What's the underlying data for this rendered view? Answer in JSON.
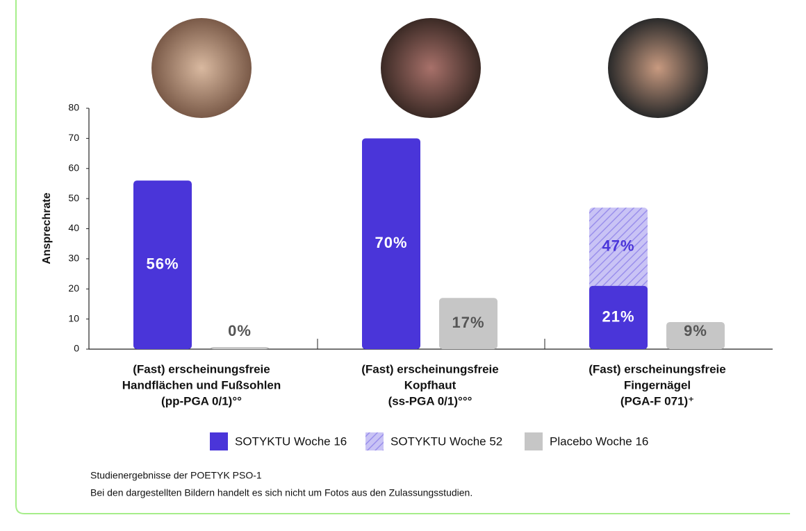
{
  "chart_data": {
    "type": "bar",
    "y_label": "Ansprechrate",
    "categories": [
      [
        "(Fast) erscheinungsfreie",
        "Handflächen und Fußsohlen",
        "(pp-PGA 0/1)°°"
      ],
      [
        "(Fast) erscheinungsfreie",
        "Kopfhaut",
        "(ss-PGA 0/1)°°°"
      ],
      [
        "(Fast) erscheinungsfreie",
        "Fingernägel",
        "(PGA-F 071)⁺"
      ]
    ],
    "series": [
      {
        "name": "SOTYKTU Woche 16",
        "color": "#4a35d9",
        "values": [
          56,
          70,
          21
        ],
        "value_labels": [
          "56%",
          "70%",
          "21%"
        ],
        "label_color": "#ffffff"
      },
      {
        "name": "SOTYKTU Woche 52",
        "color": "#b9b1f2",
        "hatched": true,
        "values": [
          null,
          null,
          47
        ],
        "value_labels": [
          null,
          null,
          "47%"
        ],
        "label_color": "#4a35d9"
      },
      {
        "name": "Placebo Woche 16",
        "color": "#c6c6c6",
        "values": [
          0,
          17,
          9
        ],
        "value_labels": [
          "0%",
          "17%",
          "9%"
        ],
        "label_color": "#555555"
      }
    ],
    "ylim": [
      0,
      80
    ],
    "yticks": [
      0,
      10,
      20,
      30,
      40,
      50,
      60,
      70,
      80
    ],
    "notes": [
      "Studienergebnisse der POETYK PSO-1",
      "Bei den dargestellten Bildern handelt es sich nicht um Fotos aus den Zulassungsstudien."
    ]
  }
}
